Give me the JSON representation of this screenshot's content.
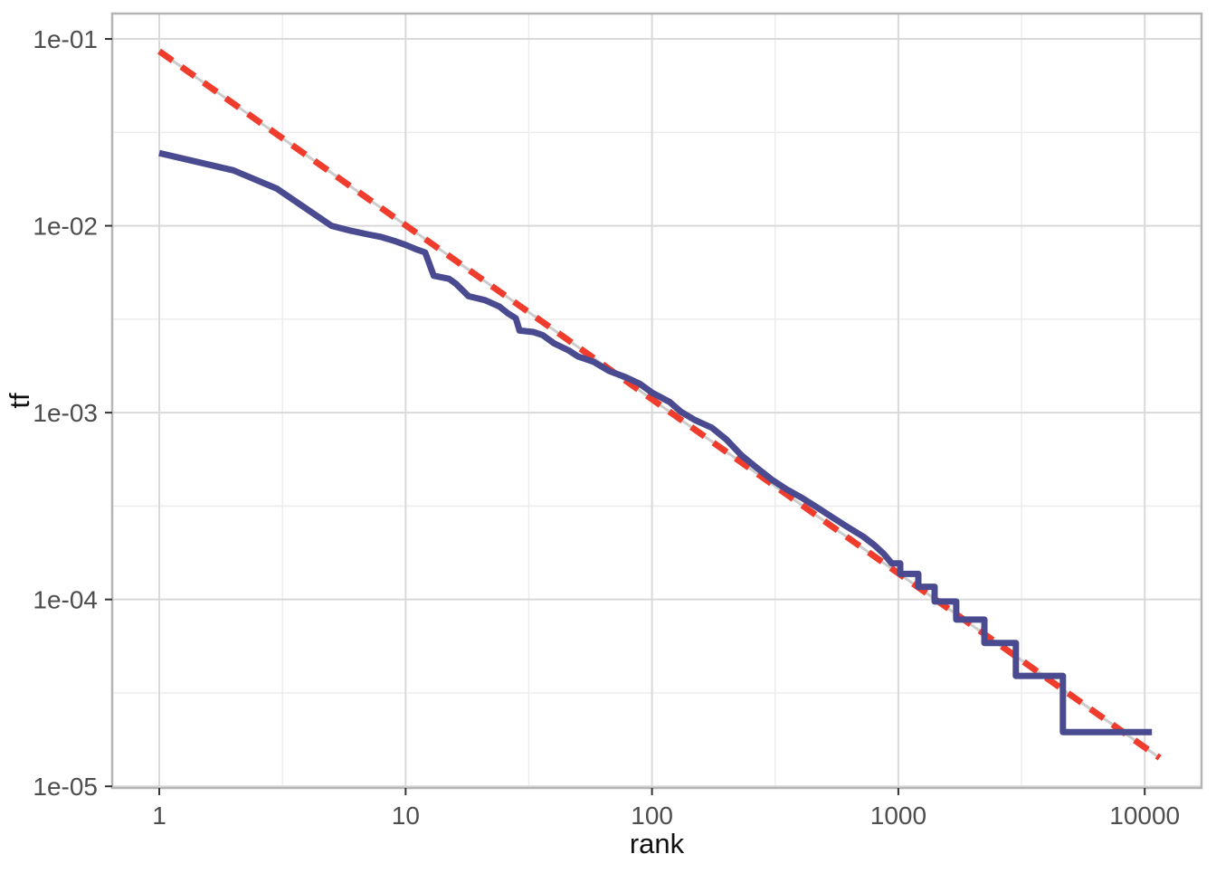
{
  "chart_data": {
    "type": "line",
    "title": "",
    "xlabel": "rank",
    "ylabel": "tf",
    "x_scale": "log10",
    "y_scale": "log10",
    "xlim": [
      0.644,
      17005
    ],
    "ylim": [
      9.8e-06,
      0.1367
    ],
    "grid": true,
    "legend": "none",
    "x_major_ticks": [
      1,
      10,
      100,
      1000,
      10000
    ],
    "x_tick_labels": [
      "1",
      "10",
      "100",
      "1000",
      "10000"
    ],
    "x_minor_ticks": [
      3.1623,
      31.623,
      316.23,
      3162.3
    ],
    "y_major_ticks": [
      0.1,
      0.01,
      0.001,
      0.0001,
      1e-05
    ],
    "y_tick_labels": [
      "1e-01",
      "1e-02",
      "1e-03",
      "1e-04",
      "1e-05"
    ],
    "y_minor_ticks": [
      0.031623,
      0.0031623,
      0.00031623,
      3.1623e-05
    ],
    "series": [
      {
        "name": "zipf-fit-underlay",
        "color": "#cccccc",
        "width": 3,
        "dasharray": "",
        "points": [
          [
            1,
            0.086
          ],
          [
            11500,
            1.42e-05
          ]
        ]
      },
      {
        "name": "zipf-fit",
        "color": "#f03c2d",
        "width": 7,
        "dasharray": "18 12",
        "points": [
          [
            1,
            0.086
          ],
          [
            11500,
            1.42e-05
          ]
        ]
      },
      {
        "name": "term-frequency",
        "color": "#4a4a90",
        "width": 7,
        "dasharray": "",
        "points": [
          [
            1,
            0.0245
          ],
          [
            2,
            0.0198
          ],
          [
            3,
            0.0158
          ],
          [
            4,
            0.0122
          ],
          [
            5,
            0.01
          ],
          [
            6,
            0.0094
          ],
          [
            7,
            0.009
          ],
          [
            8,
            0.0087
          ],
          [
            9,
            0.0083
          ],
          [
            10,
            0.0079
          ],
          [
            11,
            0.0075
          ],
          [
            12,
            0.0072
          ],
          [
            13,
            0.0054
          ],
          [
            15,
            0.0052
          ],
          [
            16,
            0.0049
          ],
          [
            18,
            0.0042
          ],
          [
            21,
            0.004
          ],
          [
            24,
            0.0037
          ],
          [
            26,
            0.0034
          ],
          [
            28,
            0.0032
          ],
          [
            29,
            0.00275
          ],
          [
            33,
            0.0027
          ],
          [
            36,
            0.0026
          ],
          [
            40,
            0.00235
          ],
          [
            46,
            0.00215
          ],
          [
            50,
            0.002
          ],
          [
            58,
            0.00187
          ],
          [
            67,
            0.00167
          ],
          [
            78,
            0.00155
          ],
          [
            89,
            0.00143
          ],
          [
            100,
            0.00128
          ],
          [
            118,
            0.00114
          ],
          [
            131,
            0.00101
          ],
          [
            150,
            0.00091
          ],
          [
            175,
            0.00083
          ],
          [
            200,
            0.00072
          ],
          [
            231,
            0.00059
          ],
          [
            260,
            0.00052
          ],
          [
            305,
            0.00044
          ],
          [
            350,
            0.00039
          ],
          [
            406,
            0.00035
          ],
          [
            470,
            0.00031
          ],
          [
            540,
            0.000275
          ],
          [
            620,
            0.000245
          ],
          [
            721,
            0.000217
          ],
          [
            800,
            0.000195
          ],
          [
            870,
            0.000176
          ],
          [
            940,
            0.000156
          ],
          [
            1018,
            0.000156
          ],
          [
            1018,
            0.000137
          ],
          [
            1205,
            0.000137
          ],
          [
            1205,
            0.000117
          ],
          [
            1403,
            0.000117
          ],
          [
            1403,
            9.75e-05
          ],
          [
            1718,
            9.75e-05
          ],
          [
            1718,
            7.8e-05
          ],
          [
            2234,
            7.8e-05
          ],
          [
            2234,
            5.85e-05
          ],
          [
            3000,
            5.85e-05
          ],
          [
            3000,
            3.9e-05
          ],
          [
            4656,
            3.9e-05
          ],
          [
            4656,
            1.95e-05
          ],
          [
            10700,
            1.95e-05
          ]
        ]
      }
    ],
    "style": {
      "panel_background": "#ffffff",
      "panel_border_color": "#b5b5b5",
      "grid_major_color": "#d9d9d9",
      "grid_minor_color": "#ececec",
      "tick_mark_color": "#333333",
      "tick_label_color": "#4d4d4d",
      "axis_title_color": "#111111"
    }
  }
}
